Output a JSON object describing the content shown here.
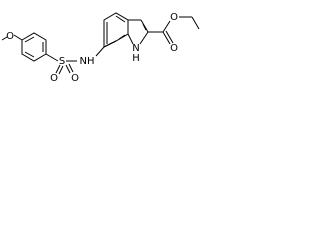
{
  "molecule": {
    "atoms": [
      {
        "label": "O"
      },
      {
        "label": "S"
      },
      {
        "label": "O"
      },
      {
        "label": "O"
      },
      {
        "label": "NH"
      },
      {
        "label": "H"
      },
      {
        "label": "N"
      },
      {
        "label": "O"
      },
      {
        "label": "O"
      }
    ]
  }
}
